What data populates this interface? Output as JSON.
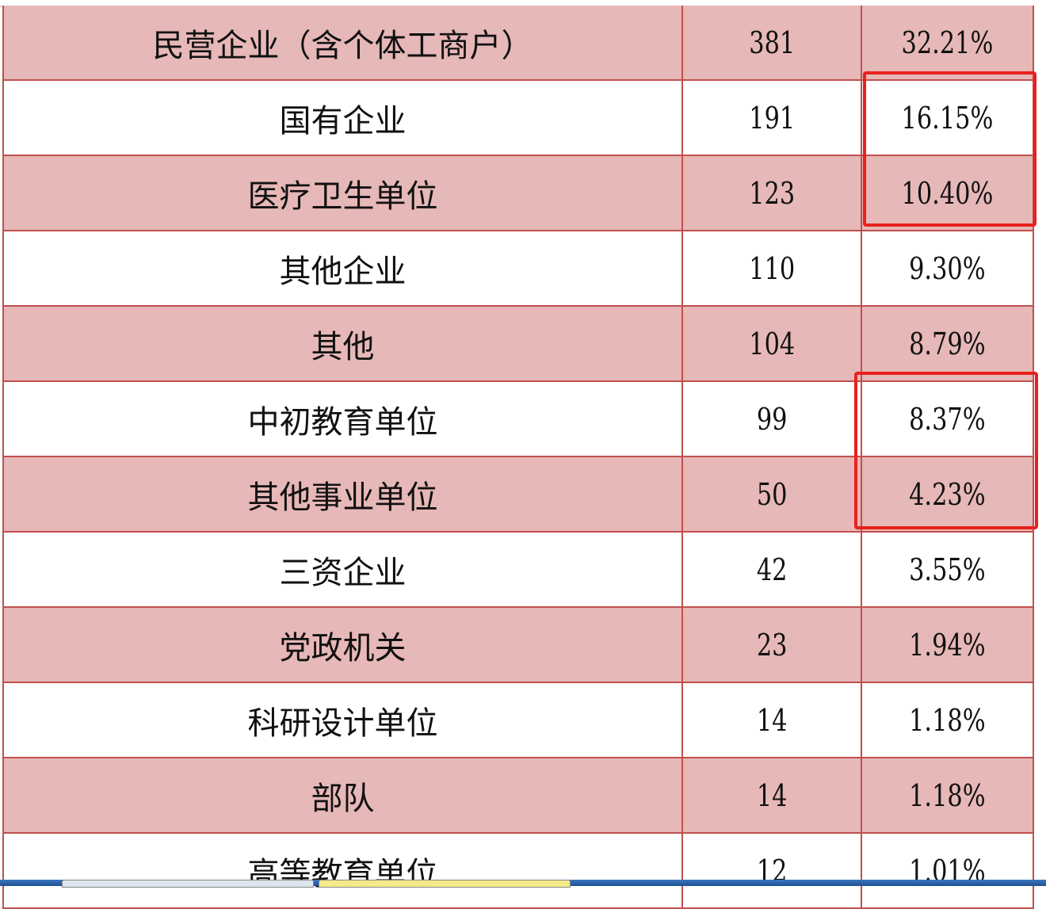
{
  "table": {
    "rows": [
      {
        "name": "民营企业（含个体工商户）",
        "count": "381",
        "percent": "32.21%"
      },
      {
        "name": "国有企业",
        "count": "191",
        "percent": "16.15%"
      },
      {
        "name": "医疗卫生单位",
        "count": "123",
        "percent": "10.40%"
      },
      {
        "name": "其他企业",
        "count": "110",
        "percent": "9.30%"
      },
      {
        "name": "其他",
        "count": "104",
        "percent": "8.79%"
      },
      {
        "name": "中初教育单位",
        "count": "99",
        "percent": "8.37%"
      },
      {
        "name": "其他事业单位",
        "count": "50",
        "percent": "4.23%"
      },
      {
        "name": "三资企业",
        "count": "42",
        "percent": "3.55%"
      },
      {
        "name": "党政机关",
        "count": "23",
        "percent": "1.94%"
      },
      {
        "name": "科研设计单位",
        "count": "14",
        "percent": "1.18%"
      },
      {
        "name": "部队",
        "count": "14",
        "percent": "1.18%"
      },
      {
        "name": "高等教育单位",
        "count": "12",
        "percent": "1.01%"
      }
    ]
  },
  "colors": {
    "pink_row": "#e6b8b7",
    "grid": "#c0504d",
    "highlight": "#e8211d",
    "taskbar": "#2a62a8"
  }
}
